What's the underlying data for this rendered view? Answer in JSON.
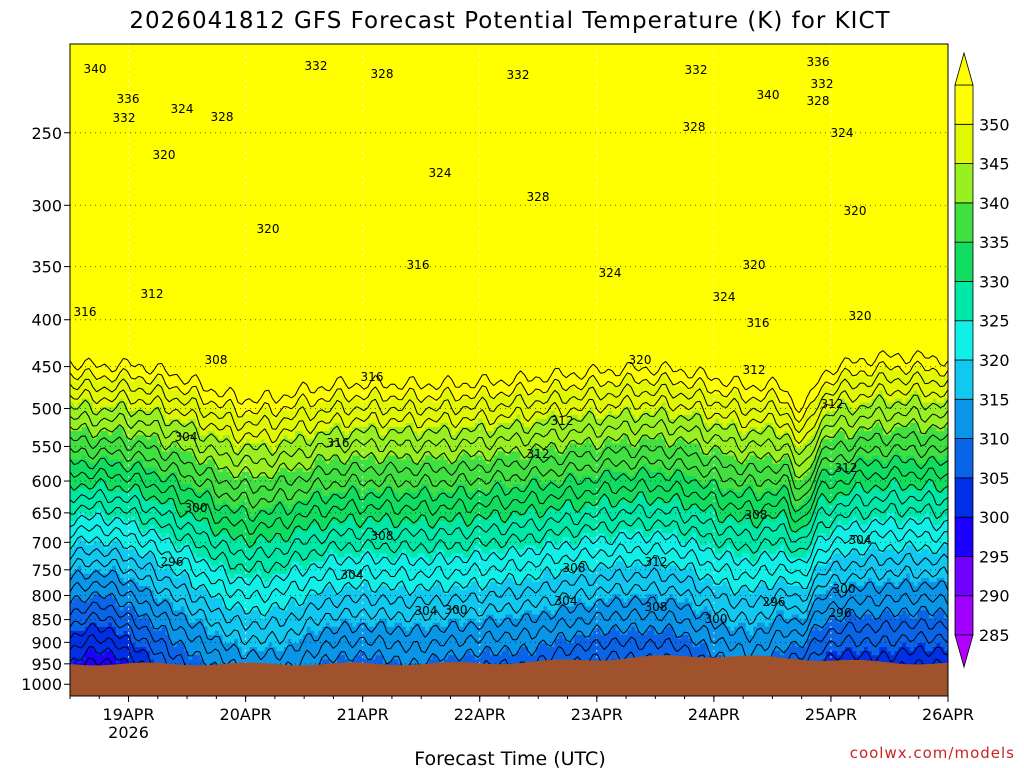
{
  "chart_data": {
    "type": "heatmap",
    "title": "2026041812 GFS Forecast Potential Temperature (K) for KICT",
    "xlabel": "Forecast Time (UTC)",
    "ylabel": "",
    "credit": "coolwx.com/models",
    "y_ticks": [
      "250",
      "300",
      "350",
      "400",
      "450",
      "500",
      "550",
      "600",
      "650",
      "700",
      "750",
      "800",
      "850",
      "900",
      "950",
      "1000"
    ],
    "y_scale": "log",
    "y_range_hPa": [
      200,
      1030
    ],
    "x_ticks": [
      "19APR",
      "20APR",
      "21APR",
      "22APR",
      "23APR",
      "24APR",
      "25APR",
      "26APR"
    ],
    "x_tick_sub": "2026",
    "x_range_hours_from_init": [
      0,
      180
    ],
    "colorbar_ticks": [
      "285",
      "290",
      "295",
      "300",
      "305",
      "310",
      "315",
      "320",
      "325",
      "330",
      "335",
      "340",
      "345",
      "350"
    ],
    "colorbar_range": [
      280,
      355
    ],
    "colors": [
      "#a000ff",
      "#7000ff",
      "#1c00ff",
      "#0030e6",
      "#0a64e8",
      "#0a96e8",
      "#10c8f0",
      "#10f0e8",
      "#00e8a8",
      "#10dc60",
      "#40e040",
      "#98f020",
      "#e0f800",
      "#ffff00"
    ],
    "ground_color": "#a0522d",
    "contour_color": "#000000",
    "contour_labels": [
      "340",
      "336",
      "332",
      "332",
      "328",
      "324",
      "332",
      "332",
      "328",
      "336",
      "340",
      "332",
      "328",
      "328",
      "324",
      "320",
      "324",
      "328",
      "320",
      "316",
      "320",
      "324",
      "320",
      "312",
      "316",
      "324",
      "320",
      "316",
      "308",
      "316",
      "312",
      "320",
      "312",
      "304",
      "312",
      "316",
      "312",
      "312",
      "300",
      "308",
      "296",
      "308",
      "304",
      "308",
      "312",
      "304",
      "300",
      "304",
      "308",
      "304",
      "300",
      "296",
      "296",
      "300"
    ],
    "grid": true
  }
}
